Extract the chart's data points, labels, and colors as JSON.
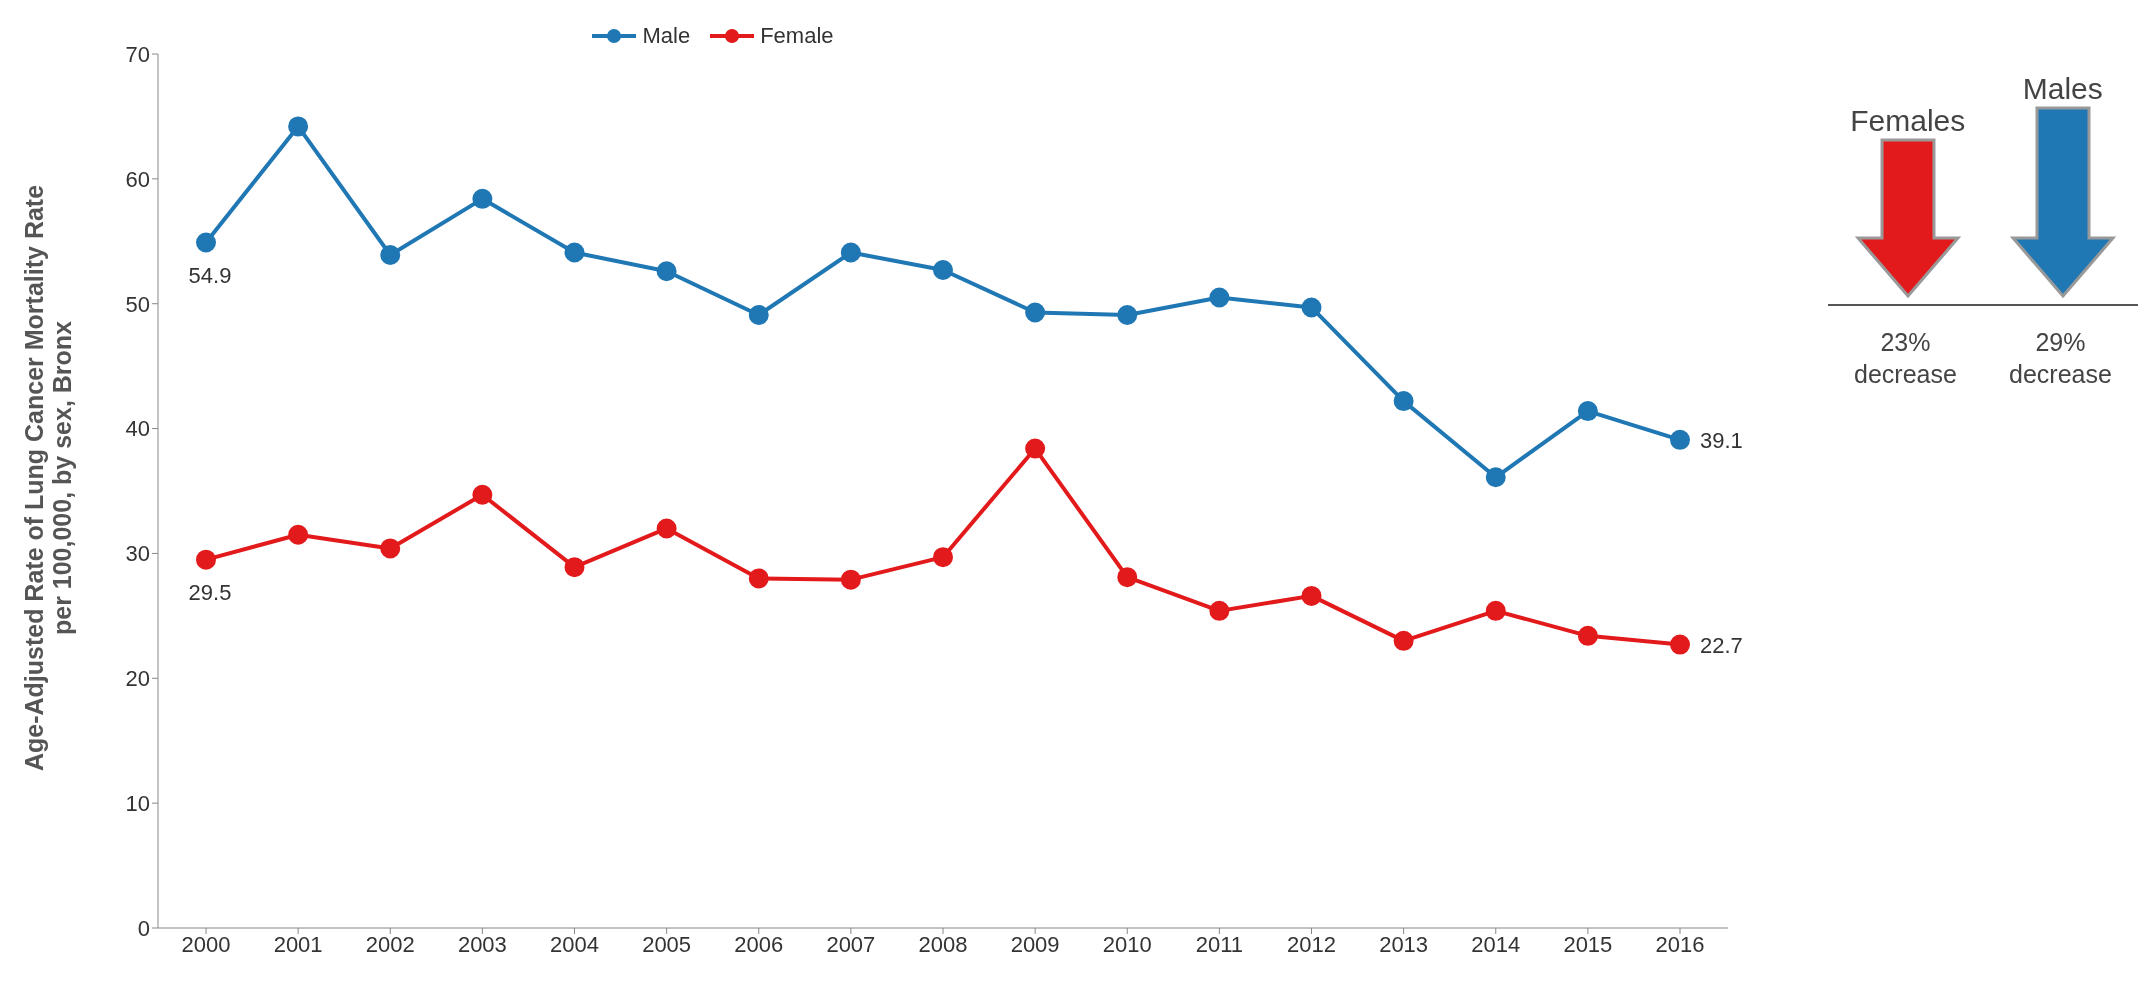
{
  "chart_data": {
    "type": "line",
    "ylabel": "Age-Adjusted Rate of Lung Cancer Mortality Rate\nper 100,000, by sex, Bronx",
    "categories": [
      "2000",
      "2001",
      "2002",
      "2003",
      "2004",
      "2005",
      "2006",
      "2007",
      "2008",
      "2009",
      "2010",
      "2011",
      "2012",
      "2013",
      "2014",
      "2015",
      "2016"
    ],
    "series": [
      {
        "name": "Male",
        "color": "#1f77b4",
        "values": [
          54.9,
          64.2,
          53.9,
          58.4,
          54.1,
          52.6,
          49.1,
          54.1,
          52.7,
          49.3,
          49.1,
          50.5,
          49.7,
          42.2,
          36.1,
          41.4,
          39.1
        ],
        "value_labels": [
          "54.9",
          null,
          null,
          null,
          null,
          null,
          null,
          null,
          null,
          null,
          null,
          null,
          null,
          null,
          null,
          null,
          "39.1"
        ]
      },
      {
        "name": "Female",
        "color": "#e31a1c",
        "values": [
          29.5,
          31.5,
          30.4,
          34.7,
          28.9,
          32.0,
          28.0,
          27.9,
          29.7,
          38.4,
          28.1,
          25.4,
          26.6,
          23.0,
          25.4,
          23.4,
          22.7
        ],
        "value_labels": [
          "29.5",
          null,
          null,
          null,
          null,
          null,
          null,
          null,
          null,
          null,
          null,
          null,
          null,
          null,
          null,
          null,
          "22.7"
        ]
      }
    ],
    "ylim": [
      0,
      70
    ],
    "yticks": [
      0,
      10,
      20,
      30,
      40,
      50,
      60,
      70
    ],
    "legend": "top",
    "marker": "circle",
    "line_style": "solid",
    "annotations": [
      "Females",
      "Males",
      "23% decrease",
      "29% decrease"
    ]
  }
}
